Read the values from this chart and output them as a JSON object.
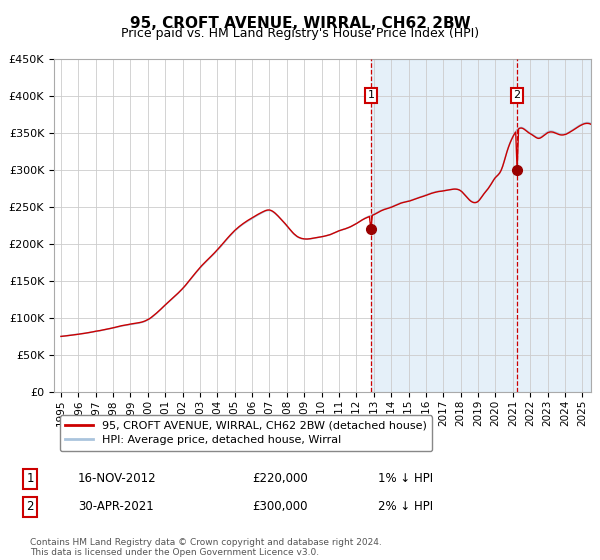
{
  "title": "95, CROFT AVENUE, WIRRAL, CH62 2BW",
  "subtitle": "Price paid vs. HM Land Registry's House Price Index (HPI)",
  "legend1": "95, CROFT AVENUE, WIRRAL, CH62 2BW (detached house)",
  "legend2": "HPI: Average price, detached house, Wirral",
  "annotation1_label": "1",
  "annotation1_date": "16-NOV-2012",
  "annotation1_price": "£220,000",
  "annotation1_text": "1% ↓ HPI",
  "annotation2_label": "2",
  "annotation2_date": "30-APR-2021",
  "annotation2_price": "£300,000",
  "annotation2_text": "2% ↓ HPI",
  "footer": "Contains HM Land Registry data © Crown copyright and database right 2024.\nThis data is licensed under the Open Government Licence v3.0.",
  "ylim": [
    0,
    450000
  ],
  "yticks": [
    0,
    50000,
    100000,
    150000,
    200000,
    250000,
    300000,
    350000,
    400000,
    450000
  ],
  "plot_bg": "#ffffff",
  "grid_color": "#cccccc",
  "line1_color": "#cc0000",
  "line2_color": "#aac4dd",
  "vline_color": "#cc0000",
  "marker_color": "#990000",
  "shade_color": "#d0e4f5",
  "shade_alpha": 0.55,
  "t1_year": 2012,
  "t1_month": 10,
  "t1_price": 220000,
  "t2_year": 2021,
  "t2_month": 3,
  "t2_price": 300000,
  "xlim_left": 1994.6,
  "xlim_right": 2025.5
}
